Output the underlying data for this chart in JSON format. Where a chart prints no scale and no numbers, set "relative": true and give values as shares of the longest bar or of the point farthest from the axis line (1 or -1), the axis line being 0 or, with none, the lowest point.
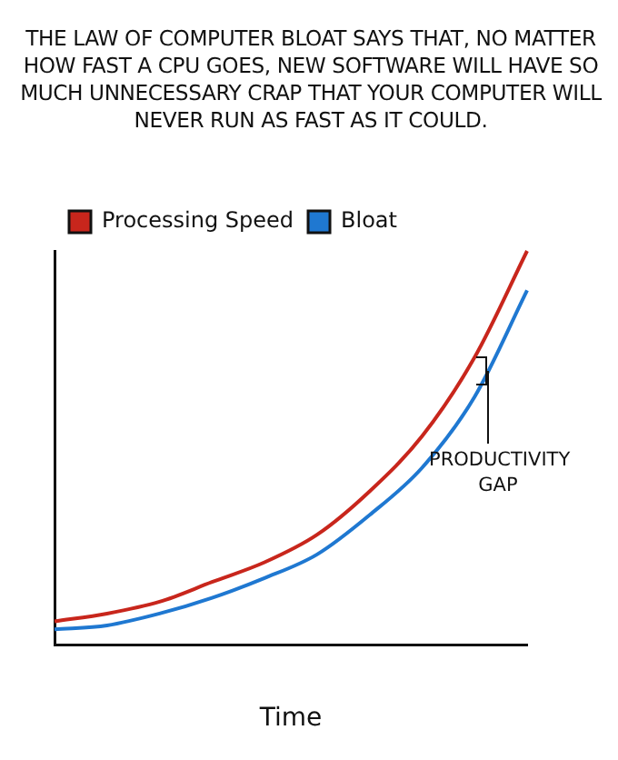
{
  "chart_data": {
    "type": "line",
    "title": "THE LAW OF COMPUTER BLOAT SAYS THAT, NO MATTER HOW FAST A CPU GOES, NEW SOFTWARE WILL HAVE SO MUCH UNNECESSARY CRAP THAT YOUR COMPUTER WILL NEVER RUN AS FAST AS IT COULD.",
    "xlabel": "Time",
    "relative": true,
    "categories": [
      null,
      null,
      null,
      null,
      null,
      null,
      null,
      null,
      null,
      null
    ],
    "series": [
      {
        "name": "Processing Speed",
        "color": "#c8261c",
        "values": [
          0.06,
          0.08,
          0.11,
          0.16,
          0.21,
          0.28,
          0.39,
          0.53,
          0.73,
          1
        ]
      },
      {
        "name": "Bloat",
        "color": "#1f78d1",
        "values": [
          0.04,
          0.05,
          0.08,
          0.12,
          0.17,
          0.23,
          0.33,
          0.45,
          0.63,
          0.9
        ]
      }
    ],
    "annotations": [
      "PRODUCTIVITY GAP"
    ],
    "legend": "top left",
    "grid": false,
    "marker": "none",
    "line_style": "solid"
  }
}
